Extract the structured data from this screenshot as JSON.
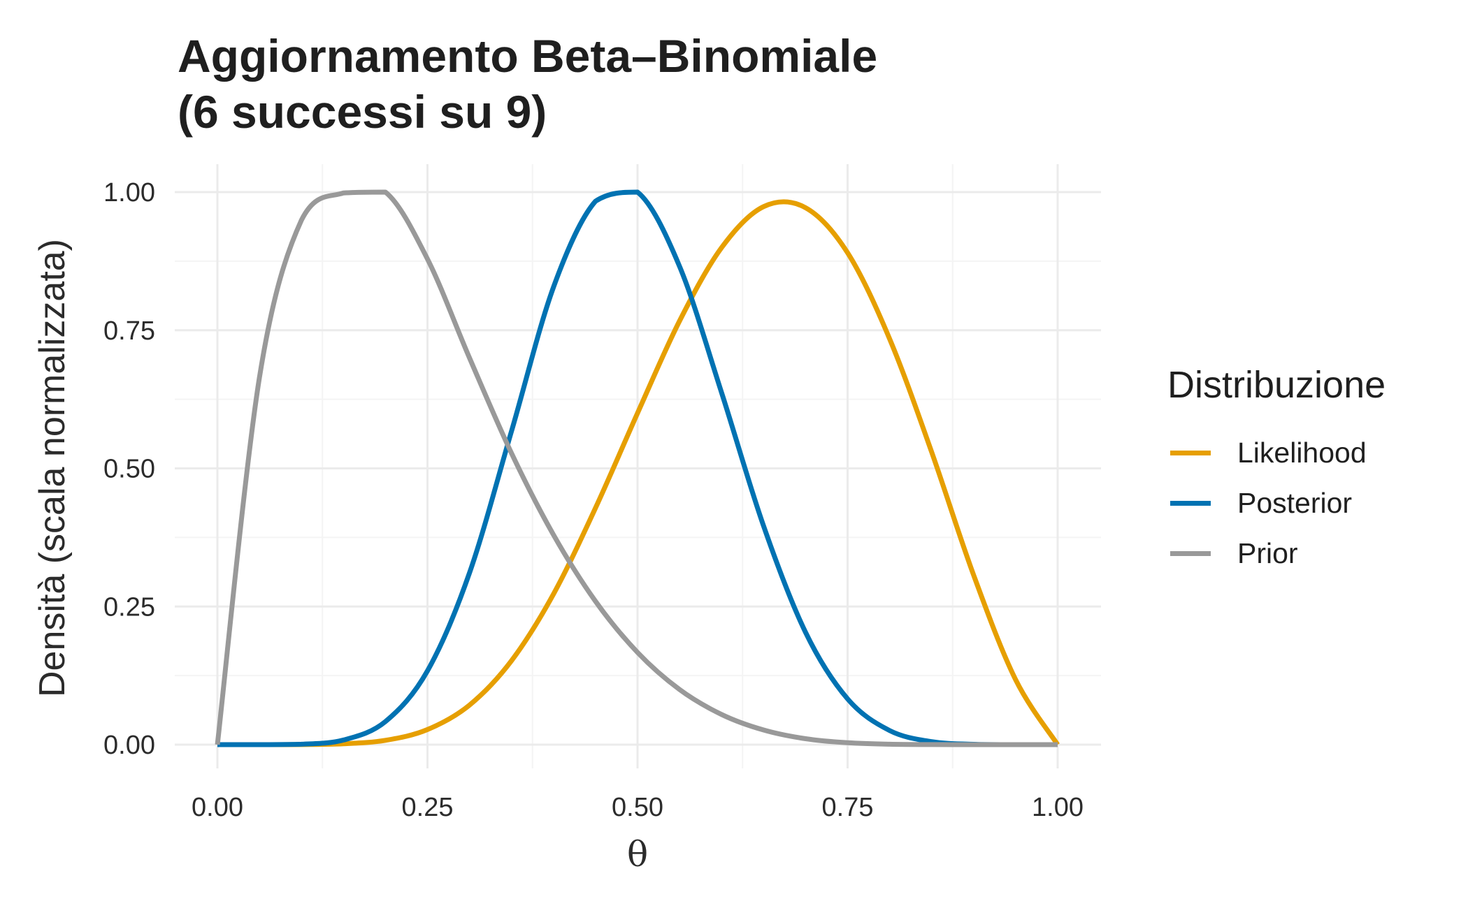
{
  "title_lines": [
    "Aggiornamento Beta–Binomiale",
    "(6 successi su 9)"
  ],
  "chart_data": {
    "type": "line",
    "title": "Aggiornamento Beta–Binomiale (6 successi su 9)",
    "xlabel": "θ",
    "ylabel": "Densità (scala normalizzata)",
    "xlim": [
      0,
      1
    ],
    "ylim": [
      0,
      1
    ],
    "xticks": [
      0,
      0.25,
      0.5,
      0.75,
      1
    ],
    "xtick_labels": [
      "0.00",
      "0.25",
      "0.50",
      "0.75",
      "1.00"
    ],
    "yticks": [
      0,
      0.25,
      0.5,
      0.75,
      1
    ],
    "ytick_labels": [
      "0.00",
      "0.25",
      "0.50",
      "0.75",
      "1.00"
    ],
    "grid": true,
    "legend": {
      "title": "Distribuzione",
      "position": "right"
    },
    "x": [
      0,
      0.05,
      0.1,
      0.15,
      0.2,
      0.25,
      0.3,
      0.35,
      0.4,
      0.45,
      0.5,
      0.55,
      0.6,
      0.65,
      0.7,
      0.75,
      0.8,
      0.85,
      0.9,
      0.95,
      1
    ],
    "series": [
      {
        "name": "Likelihood",
        "color": "#E69F00",
        "values": [
          0,
          0,
          0.0001,
          0.0015,
          0.0078,
          0.0273,
          0.0716,
          0.1518,
          0.2726,
          0.4284,
          0.6,
          0.7667,
          0.8994,
          0.9737,
          0.9717,
          0.8901,
          0.7344,
          0.5297,
          0.3068,
          0.1175,
          0
        ]
      },
      {
        "name": "Posterior",
        "color": "#0072B2",
        "values": [
          0,
          0,
          0.0007,
          0.0084,
          0.0419,
          0.1335,
          0.3107,
          0.5672,
          0.8281,
          0.9836,
          1,
          0.8656,
          0.6372,
          0.3958,
          0.2031,
          0.0828,
          0.0256,
          0.0054,
          0.0006,
          0,
          0
        ]
      },
      {
        "name": "Prior",
        "color": "#999999",
        "values": [
          0,
          0.6641,
          0.9492,
          0.9985,
          1,
          0.8789,
          0.7,
          0.5274,
          0.3797,
          0.2594,
          0.1669,
          0.0998,
          0.0546,
          0.0265,
          0.0107,
          0.0034,
          0.0007,
          0.0001,
          0,
          0,
          0
        ]
      }
    ]
  }
}
